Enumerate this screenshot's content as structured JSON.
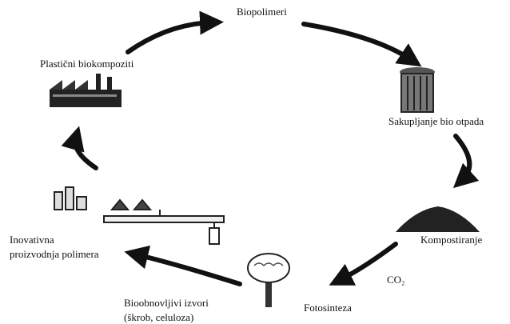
{
  "nodes": [
    {
      "label": "Biopolimeri"
    },
    {
      "label": "Sakupljanje bio otpada"
    },
    {
      "label": "Kompostiranje"
    },
    {
      "label": "CO₂"
    },
    {
      "label": "Fotosinteza"
    },
    {
      "lines": [
        "Bioobnovljivi izvori",
        "(škrob, celuloza)"
      ]
    },
    {
      "lines": [
        "Inovativna",
        "proizvodnja polimera"
      ]
    },
    {
      "label": "Plastični biokompoziti"
    }
  ]
}
